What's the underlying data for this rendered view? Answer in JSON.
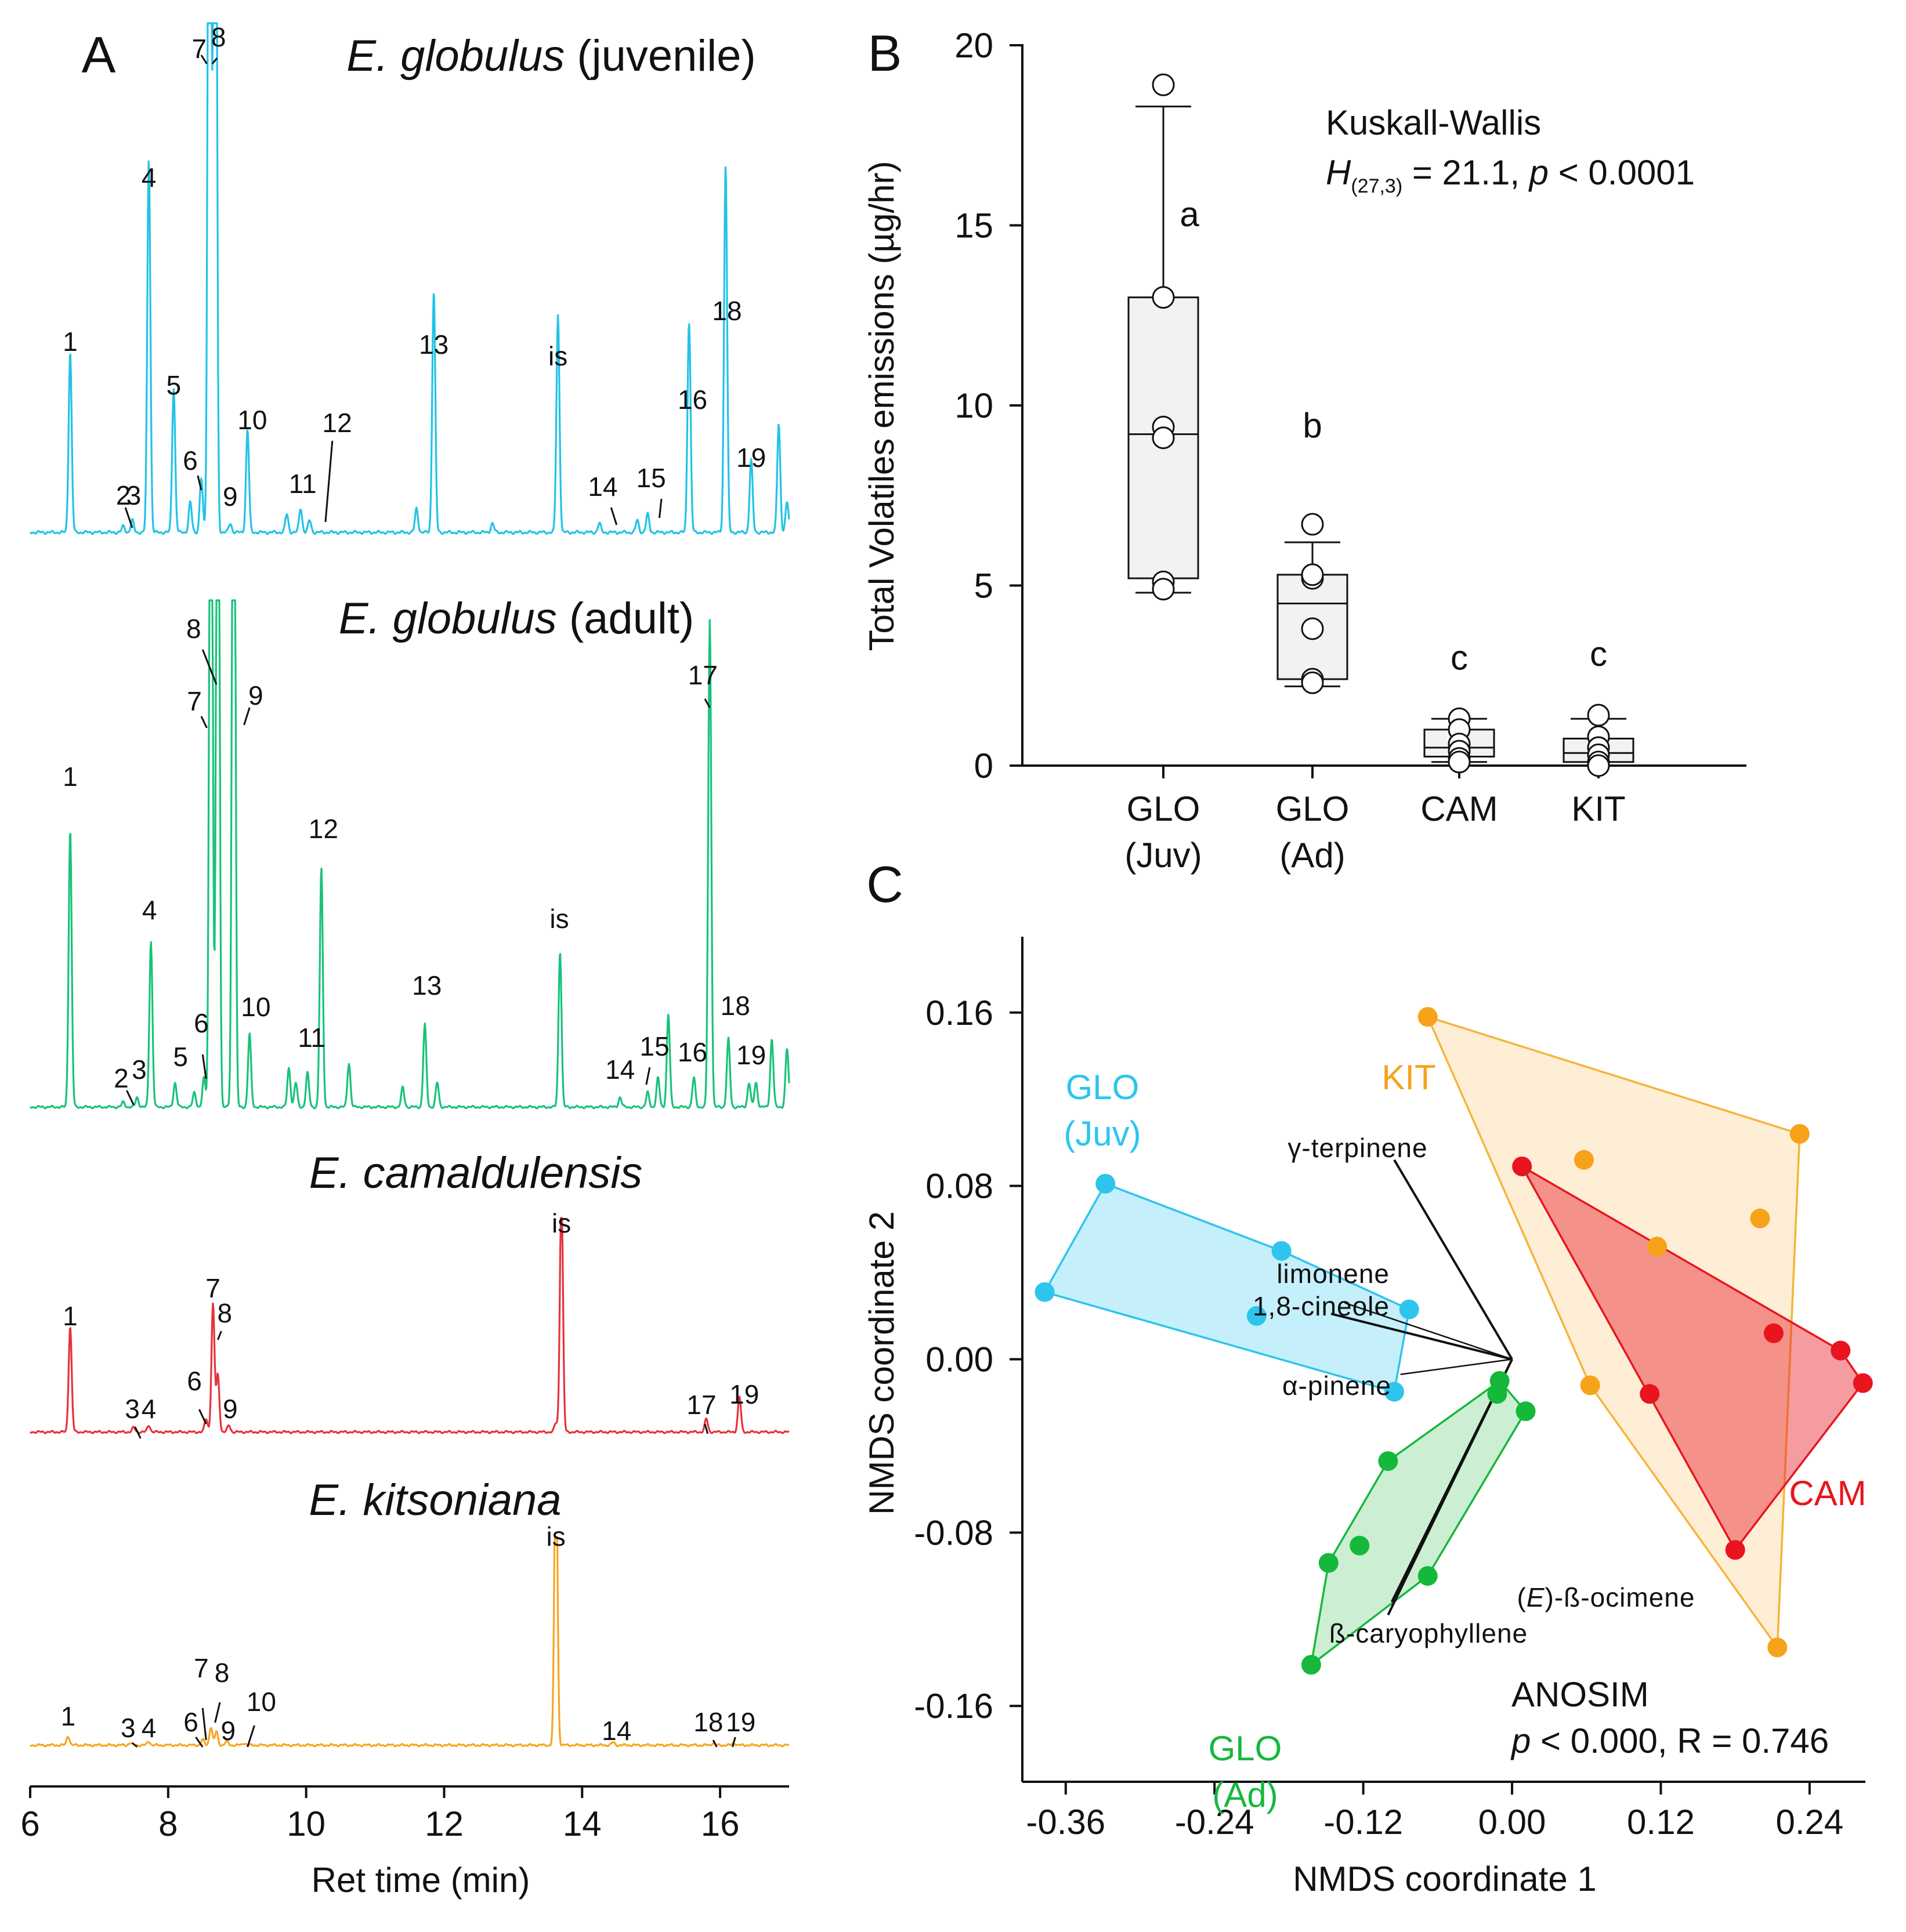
{
  "colors": {
    "juvenile": "#22c3e6",
    "adult": "#19c27a",
    "camaldulensis": "#e6323c",
    "kitsoniana": "#f5a623",
    "glo_juv_point": "#2ec4ee",
    "glo_ad_point": "#16b83c",
    "kit_point": "#f7a21b",
    "cam_point": "#e8141e",
    "box_fill": "#f2f2f2"
  },
  "chart_data": [
    {
      "id": "A",
      "type": "line",
      "panel_label": "A",
      "xlabel": "Ret time (min)",
      "xlim": [
        6,
        17
      ],
      "xticks": [
        "6",
        "8",
        "10",
        "12",
        "14",
        "16"
      ],
      "traces": [
        {
          "key": "juv",
          "title_italic": "E. globulus",
          "title_rest": " (juvenile)",
          "color_key": "juvenile",
          "peaks": [
            {
              "t": 6.58,
              "h": 0.3,
              "label": "1"
            },
            {
              "t": 7.35,
              "h": 0.01,
              "label": "2"
            },
            {
              "t": 7.48,
              "h": 0.02,
              "label": "3"
            },
            {
              "t": 7.72,
              "h": 0.62,
              "label": "4"
            },
            {
              "t": 8.08,
              "h": 0.24,
              "label": "5"
            },
            {
              "t": 8.32,
              "h": 0.05,
              "label": "6"
            },
            {
              "t": 8.48,
              "h": 0.09,
              "label": "6"
            },
            {
              "t": 8.6,
              "h": 2.0,
              "label": "7"
            },
            {
              "t": 8.68,
              "h": 2.0,
              "label": "8"
            },
            {
              "t": 8.9,
              "h": 0.015,
              "label": "9"
            },
            {
              "t": 9.15,
              "h": 0.17,
              "label": "10"
            },
            {
              "t": 9.72,
              "h": 0.03,
              "label": ""
            },
            {
              "t": 9.92,
              "h": 0.04,
              "label": "11"
            },
            {
              "t": 10.05,
              "h": 0.02,
              "label": "12"
            },
            {
              "t": 11.6,
              "h": 0.04,
              "label": ""
            },
            {
              "t": 11.85,
              "h": 0.4,
              "label": "13"
            },
            {
              "t": 12.7,
              "h": 0.015,
              "label": ""
            },
            {
              "t": 13.65,
              "h": 0.36,
              "label": "is"
            },
            {
              "t": 14.25,
              "h": 0.015,
              "label": "14"
            },
            {
              "t": 14.8,
              "h": 0.02,
              "label": ""
            },
            {
              "t": 14.95,
              "h": 0.03,
              "label": "15"
            },
            {
              "t": 15.55,
              "h": 0.35,
              "label": "16"
            },
            {
              "t": 16.08,
              "h": 0.61,
              "label": "18"
            },
            {
              "t": 16.45,
              "h": 0.12,
              "label": "19"
            },
            {
              "t": 16.85,
              "h": 0.18,
              "label": ""
            },
            {
              "t": 16.97,
              "h": 0.05,
              "label": ""
            }
          ]
        },
        {
          "key": "ad",
          "title_italic": "E. globulus",
          "title_rest": " (adult)",
          "color_key": "adult",
          "peaks": [
            {
              "t": 6.58,
              "h": 0.57,
              "label": "1"
            },
            {
              "t": 7.35,
              "h": 0.01,
              "label": "2"
            },
            {
              "t": 7.55,
              "h": 0.02,
              "label": "3"
            },
            {
              "t": 7.75,
              "h": 0.34,
              "label": "4"
            },
            {
              "t": 8.1,
              "h": 0.05,
              "label": "5"
            },
            {
              "t": 8.38,
              "h": 0.03,
              "label": ""
            },
            {
              "t": 8.52,
              "h": 0.06,
              "label": "6"
            },
            {
              "t": 8.62,
              "h": 2.0,
              "label": "7"
            },
            {
              "t": 8.72,
              "h": 2.0,
              "label": "8"
            },
            {
              "t": 8.95,
              "h": 2.0,
              "label": "9"
            },
            {
              "t": 9.18,
              "h": 0.15,
              "label": "10"
            },
            {
              "t": 9.75,
              "h": 0.08,
              "label": ""
            },
            {
              "t": 9.85,
              "h": 0.05,
              "label": ""
            },
            {
              "t": 10.02,
              "h": 0.07,
              "label": "11"
            },
            {
              "t": 10.22,
              "h": 0.49,
              "label": "12"
            },
            {
              "t": 10.62,
              "h": 0.09,
              "label": ""
            },
            {
              "t": 11.4,
              "h": 0.04,
              "label": ""
            },
            {
              "t": 11.72,
              "h": 0.17,
              "label": "13"
            },
            {
              "t": 11.9,
              "h": 0.05,
              "label": ""
            },
            {
              "t": 13.68,
              "h": 0.32,
              "label": "is"
            },
            {
              "t": 14.55,
              "h": 0.02,
              "label": "14"
            },
            {
              "t": 14.95,
              "h": 0.03,
              "label": ""
            },
            {
              "t": 15.1,
              "h": 0.06,
              "label": "15"
            },
            {
              "t": 15.25,
              "h": 0.19,
              "label": ""
            },
            {
              "t": 15.62,
              "h": 0.06,
              "label": "16"
            },
            {
              "t": 15.85,
              "h": 1.0,
              "label": "17"
            },
            {
              "t": 16.12,
              "h": 0.14,
              "label": "18"
            },
            {
              "t": 16.42,
              "h": 0.05,
              "label": "19"
            },
            {
              "t": 16.52,
              "h": 0.05,
              "label": ""
            },
            {
              "t": 16.75,
              "h": 0.14,
              "label": ""
            },
            {
              "t": 16.97,
              "h": 0.12,
              "label": ""
            }
          ]
        },
        {
          "key": "cam",
          "title_italic": "E. camaldulensis",
          "title_rest": "",
          "color_key": "camaldulensis",
          "peaks": [
            {
              "t": 6.58,
              "h": 0.24,
              "label": "1"
            },
            {
              "t": 7.5,
              "h": 0.01,
              "label": "3"
            },
            {
              "t": 7.72,
              "h": 0.015,
              "label": "4"
            },
            {
              "t": 8.55,
              "h": 0.03,
              "label": "6"
            },
            {
              "t": 8.65,
              "h": 0.29,
              "label": "7"
            },
            {
              "t": 8.72,
              "h": 0.13,
              "label": "8"
            },
            {
              "t": 8.88,
              "h": 0.015,
              "label": "9"
            },
            {
              "t": 13.62,
              "h": 0.02,
              "label": ""
            },
            {
              "t": 13.7,
              "h": 0.56,
              "label": "is"
            },
            {
              "t": 15.8,
              "h": 0.03,
              "label": "17"
            },
            {
              "t": 16.28,
              "h": 0.08,
              "label": "19"
            }
          ]
        },
        {
          "key": "kit",
          "title_italic": "E. kitsoniana",
          "title_rest": "",
          "color_key": "kitsoniana",
          "peaks": [
            {
              "t": 6.55,
              "h": 0.02,
              "label": "1"
            },
            {
              "t": 7.45,
              "h": 0.005,
              "label": "3"
            },
            {
              "t": 7.72,
              "h": 0.008,
              "label": "4"
            },
            {
              "t": 8.5,
              "h": 0.012,
              "label": "6"
            },
            {
              "t": 8.62,
              "h": 0.04,
              "label": "7"
            },
            {
              "t": 8.7,
              "h": 0.03,
              "label": "8"
            },
            {
              "t": 8.85,
              "h": 0.008,
              "label": "9"
            },
            {
              "t": 9.1,
              "h": 0.005,
              "label": "10"
            },
            {
              "t": 13.62,
              "h": 0.7,
              "label": "is"
            },
            {
              "t": 14.45,
              "h": 0.006,
              "label": "14"
            },
            {
              "t": 15.9,
              "h": 0.005,
              "label": "18"
            },
            {
              "t": 16.2,
              "h": 0.005,
              "label": "19"
            }
          ]
        }
      ]
    },
    {
      "id": "B",
      "type": "box",
      "panel_label": "B",
      "ylabel": "Total Volatiles emissions (µg/hr)",
      "ylim": [
        0,
        20
      ],
      "yticks": [
        "0",
        "5",
        "10",
        "15",
        "20"
      ],
      "test_title": "Kuskall-Wallis",
      "test_stat_H": "H",
      "test_stat_sub": "(27,3)",
      "test_stat_rest": " = 21.1, ",
      "test_p_sym": "p",
      "test_p_rest": " < 0.0001",
      "groups": [
        {
          "line1": "GLO",
          "line2": "(Juv)",
          "letter": "a",
          "q1": 5.2,
          "median": 9.2,
          "q3": 13.0,
          "wlo": 4.8,
          "whi": 18.3,
          "points": [
            18.9,
            13.0,
            9.4,
            9.1,
            5.1,
            4.9
          ]
        },
        {
          "line1": "GLO",
          "line2": "(Ad)",
          "letter": "b",
          "q1": 2.4,
          "median": 4.5,
          "q3": 5.3,
          "wlo": 2.2,
          "whi": 6.2,
          "points": [
            6.7,
            5.2,
            5.3,
            3.8,
            2.4,
            2.3
          ]
        },
        {
          "line1": "CAM",
          "line2": "",
          "letter": "c",
          "q1": 0.25,
          "median": 0.5,
          "q3": 1.0,
          "wlo": 0.1,
          "whi": 1.3,
          "points": [
            1.3,
            1.0,
            0.6,
            0.4,
            0.2,
            0.1
          ]
        },
        {
          "line1": "KIT",
          "line2": "",
          "letter": "c",
          "q1": 0.1,
          "median": 0.35,
          "q3": 0.75,
          "wlo": 0.0,
          "whi": 1.3,
          "points": [
            1.4,
            0.8,
            0.5,
            0.3,
            0.1,
            0.0
          ]
        }
      ]
    },
    {
      "id": "C",
      "type": "scatter",
      "panel_label": "C",
      "xlabel": "NMDS coordinate 1",
      "ylabel": "NMDS coordinate 2",
      "xlim": [
        -0.395,
        0.285
      ],
      "ylim": [
        -0.195,
        0.195
      ],
      "xticks": [
        "-0.36",
        "-0.24",
        "-0.12",
        "0.00",
        "0.12",
        "0.24"
      ],
      "yticks": [
        "-0.16",
        "-0.08",
        "0.00",
        "0.08",
        "0.16"
      ],
      "stat_title": "ANOSIM",
      "stat_p_sym": "p",
      "stat_rest": " < 0.000, R = 0.746",
      "groups": [
        {
          "name_line1": "GLO",
          "name_line2": "(Juv)",
          "color_key": "glo_juv_point",
          "points": [
            [
              -0.377,
              0.031
            ],
            [
              -0.328,
              0.081
            ],
            [
              -0.186,
              0.05
            ],
            [
              -0.206,
              0.02
            ],
            [
              -0.083,
              0.023
            ],
            [
              -0.095,
              -0.015
            ]
          ],
          "hull": [
            [
              -0.377,
              0.031
            ],
            [
              -0.328,
              0.081
            ],
            [
              -0.186,
              0.05
            ],
            [
              -0.083,
              0.023
            ],
            [
              -0.095,
              -0.015
            ]
          ]
        },
        {
          "name_line1": "GLO",
          "name_line2": "(Ad)",
          "color_key": "glo_ad_point",
          "points": [
            [
              -0.01,
              -0.01
            ],
            [
              -0.012,
              -0.016
            ],
            [
              0.011,
              -0.024
            ],
            [
              -0.1,
              -0.047
            ],
            [
              -0.123,
              -0.086
            ],
            [
              -0.148,
              -0.094
            ],
            [
              -0.068,
              -0.1
            ],
            [
              -0.162,
              -0.141
            ]
          ],
          "hull": [
            [
              -0.01,
              -0.01
            ],
            [
              0.011,
              -0.024
            ],
            [
              -0.068,
              -0.1
            ],
            [
              -0.162,
              -0.141
            ],
            [
              -0.148,
              -0.094
            ],
            [
              -0.1,
              -0.047
            ]
          ]
        },
        {
          "name_line1": "KIT",
          "name_line2": "",
          "color_key": "kit_point",
          "points": [
            [
              -0.068,
              0.158
            ],
            [
              0.232,
              0.104
            ],
            [
              0.058,
              0.092
            ],
            [
              0.2,
              0.065
            ],
            [
              0.117,
              0.052
            ],
            [
              0.063,
              -0.012
            ],
            [
              0.214,
              -0.133
            ]
          ],
          "hull": [
            [
              -0.068,
              0.158
            ],
            [
              0.232,
              0.104
            ],
            [
              0.214,
              -0.133
            ],
            [
              0.063,
              -0.012
            ]
          ]
        },
        {
          "name_line1": "CAM",
          "name_line2": "",
          "color_key": "cam_point",
          "points": [
            [
              0.008,
              0.089
            ],
            [
              0.211,
              0.012
            ],
            [
              0.265,
              0.004
            ],
            [
              0.283,
              -0.011
            ],
            [
              0.111,
              -0.016
            ],
            [
              0.18,
              -0.088
            ]
          ],
          "hull": [
            [
              0.008,
              0.089
            ],
            [
              0.265,
              0.004
            ],
            [
              0.283,
              -0.011
            ],
            [
              0.18,
              -0.088
            ]
          ]
        }
      ],
      "vectors": [
        {
          "name": "γ-terpinene",
          "x": -0.095,
          "y": 0.092
        },
        {
          "name": "limonene",
          "x": -0.135,
          "y": 0.026
        },
        {
          "name": "1,8-cineole",
          "x": -0.146,
          "y": 0.021
        },
        {
          "name": "α-pinene",
          "x": -0.09,
          "y": -0.007
        },
        {
          "name": "(E)-ß-ocimene",
          "x": -0.1,
          "y": -0.118
        },
        {
          "name": "ß-caryophyllene",
          "x": -0.097,
          "y": -0.112
        }
      ],
      "vector_label_parts": {
        "ocimene_pre": "(",
        "ocimene_italic": "E",
        "ocimene_post": ")-ß-ocimene"
      }
    }
  ]
}
